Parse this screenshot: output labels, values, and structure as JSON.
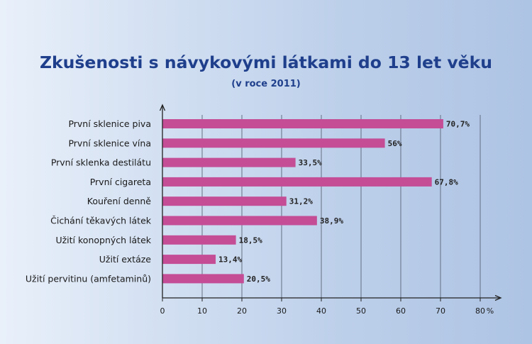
{
  "colors": {
    "bar": "#c44d96",
    "title": "#1f3f8c",
    "grid": "#5a6478",
    "axis": "#222222"
  },
  "chart_data": {
    "type": "bar",
    "orientation": "horizontal",
    "title": "Zkušenosti s návykovými látkami do 13 let věku",
    "subtitle": "(v roce 2011)",
    "categories": [
      "První sklenice piva",
      "První sklenice vína",
      "První sklenka destilátu",
      "První cigareta",
      "Kouření denně",
      "Čichání těkavých látek",
      "Užití konopných látek",
      "Užití extáze",
      "Užití pervitinu (amfetaminů)"
    ],
    "values": [
      70.7,
      56,
      33.5,
      67.8,
      31.2,
      38.9,
      18.5,
      13.4,
      20.5
    ],
    "value_labels": [
      "70,7%",
      "56%",
      "33,5%",
      "67,8%",
      "31,2%",
      "38,9%",
      "18,5%",
      "13,4%",
      "20,5%"
    ],
    "xlim": [
      0,
      80
    ],
    "xticks": [
      0,
      10,
      20,
      30,
      40,
      50,
      60,
      70,
      80
    ],
    "xtick_labels": [
      "0",
      "10",
      "20",
      "30",
      "40",
      "50",
      "60",
      "70",
      "80"
    ],
    "xunit": "%",
    "grid": true
  }
}
